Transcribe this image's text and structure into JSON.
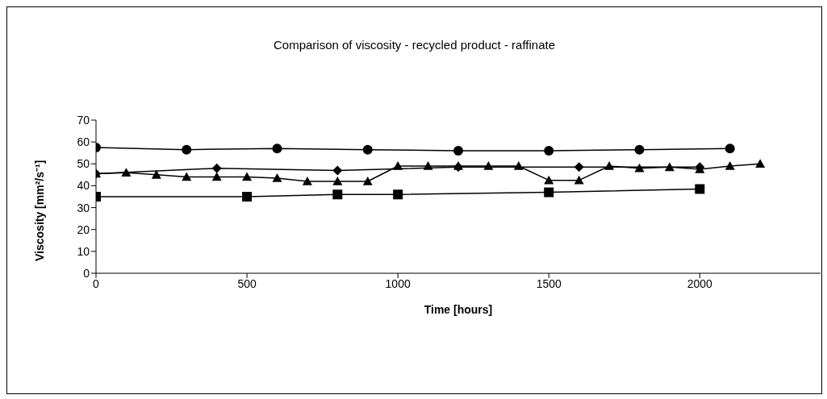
{
  "chart_data": {
    "type": "line",
    "title": "Comparison of viscosity - recycled product - raffinate",
    "xlabel": "Time [hours]",
    "ylabel": "Viscosity [mm²/s⁻¹]",
    "xlim": [
      0,
      2400
    ],
    "xticks": [
      0,
      500,
      1000,
      1500,
      2000
    ],
    "ylim": [
      0,
      70
    ],
    "yticks": [
      0,
      10,
      20,
      30,
      40,
      50,
      60,
      70
    ],
    "grid": false,
    "series": [
      {
        "color": "#000000",
        "marker": "square",
        "x": [
          0,
          500,
          800,
          1000,
          1500,
          2000
        ],
        "values": [
          35,
          35,
          36,
          36,
          37,
          38.5
        ]
      },
      {
        "color": "#000000",
        "marker": "diamond",
        "x": [
          0,
          400,
          800,
          1200,
          1600,
          2000
        ],
        "values": [
          45.5,
          48,
          47,
          48.5,
          48.5,
          48.5
        ]
      },
      {
        "color": "#000000",
        "marker": "circle",
        "x": [
          0,
          300,
          600,
          900,
          1200,
          1500,
          1800,
          2100
        ],
        "values": [
          57.5,
          56.5,
          57,
          56.5,
          56,
          56,
          56.5,
          57
        ]
      },
      {
        "color": "#000000",
        "marker": "triangle",
        "x": [
          0,
          100,
          200,
          300,
          400,
          500,
          600,
          700,
          800,
          900,
          1000,
          1100,
          1200,
          1300,
          1400,
          1500,
          1600,
          1700,
          1800,
          1900,
          2000,
          2100,
          2200
        ],
        "values": [
          45.5,
          46,
          45,
          44,
          44,
          44,
          43.5,
          42,
          42,
          42,
          49,
          49,
          49,
          49,
          49,
          42.5,
          42.5,
          49,
          48,
          48.5,
          47.5,
          49,
          50
        ]
      }
    ]
  }
}
